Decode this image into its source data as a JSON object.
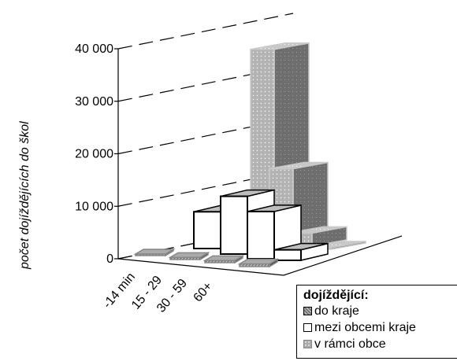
{
  "chart_data": {
    "type": "bar",
    "subtype": "3d-grouped-bar",
    "ylabel": "počet dojíždějících do škol",
    "ylim": [
      0,
      40000
    ],
    "yticks": [
      "0",
      "10 000",
      "20 000",
      "30 000",
      "40 000"
    ],
    "ytick_values": [
      0,
      10000,
      20000,
      30000,
      40000
    ],
    "categories": [
      "-14 min",
      "15 - 29",
      "30 - 59",
      "60+"
    ],
    "series": [
      {
        "name": "do kraje",
        "values": [
          300,
          400,
          400,
          500
        ],
        "color": "#888888",
        "pattern": "diagonal-hatch"
      },
      {
        "name": "mezi obcemi kraje",
        "values": [
          7000,
          11000,
          9000,
          2000
        ],
        "color": "#ffffff",
        "pattern": "solid"
      },
      {
        "name": "v rámci obce",
        "values": [
          36000,
          14000,
          2500,
          300
        ],
        "color": "#b0b0b0",
        "pattern": "dots"
      }
    ],
    "grid": true,
    "legend": {
      "title": "dojíždějící:",
      "position": "bottom-right"
    }
  }
}
